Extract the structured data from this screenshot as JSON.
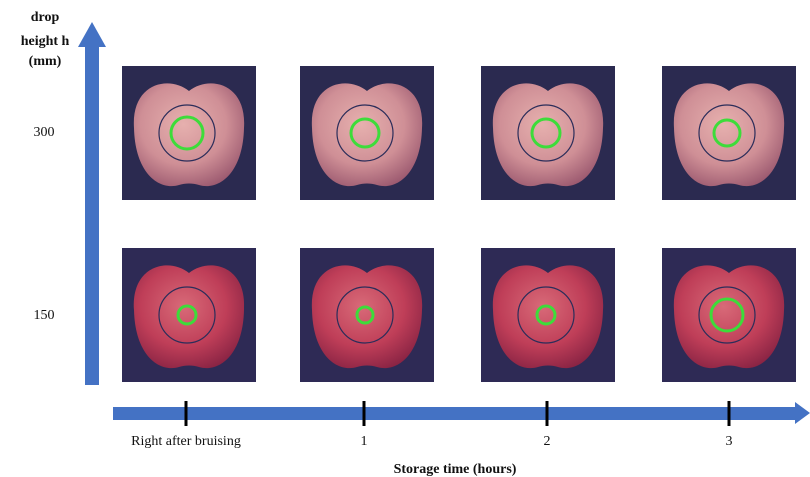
{
  "y_axis": {
    "title_lines": [
      "drop",
      "height h",
      "(mm)"
    ],
    "labels": [
      "300",
      "150"
    ]
  },
  "x_axis": {
    "labels": [
      "Right after bruising",
      "1",
      "2",
      "3"
    ],
    "title": "Storage time (hours)"
  }
}
